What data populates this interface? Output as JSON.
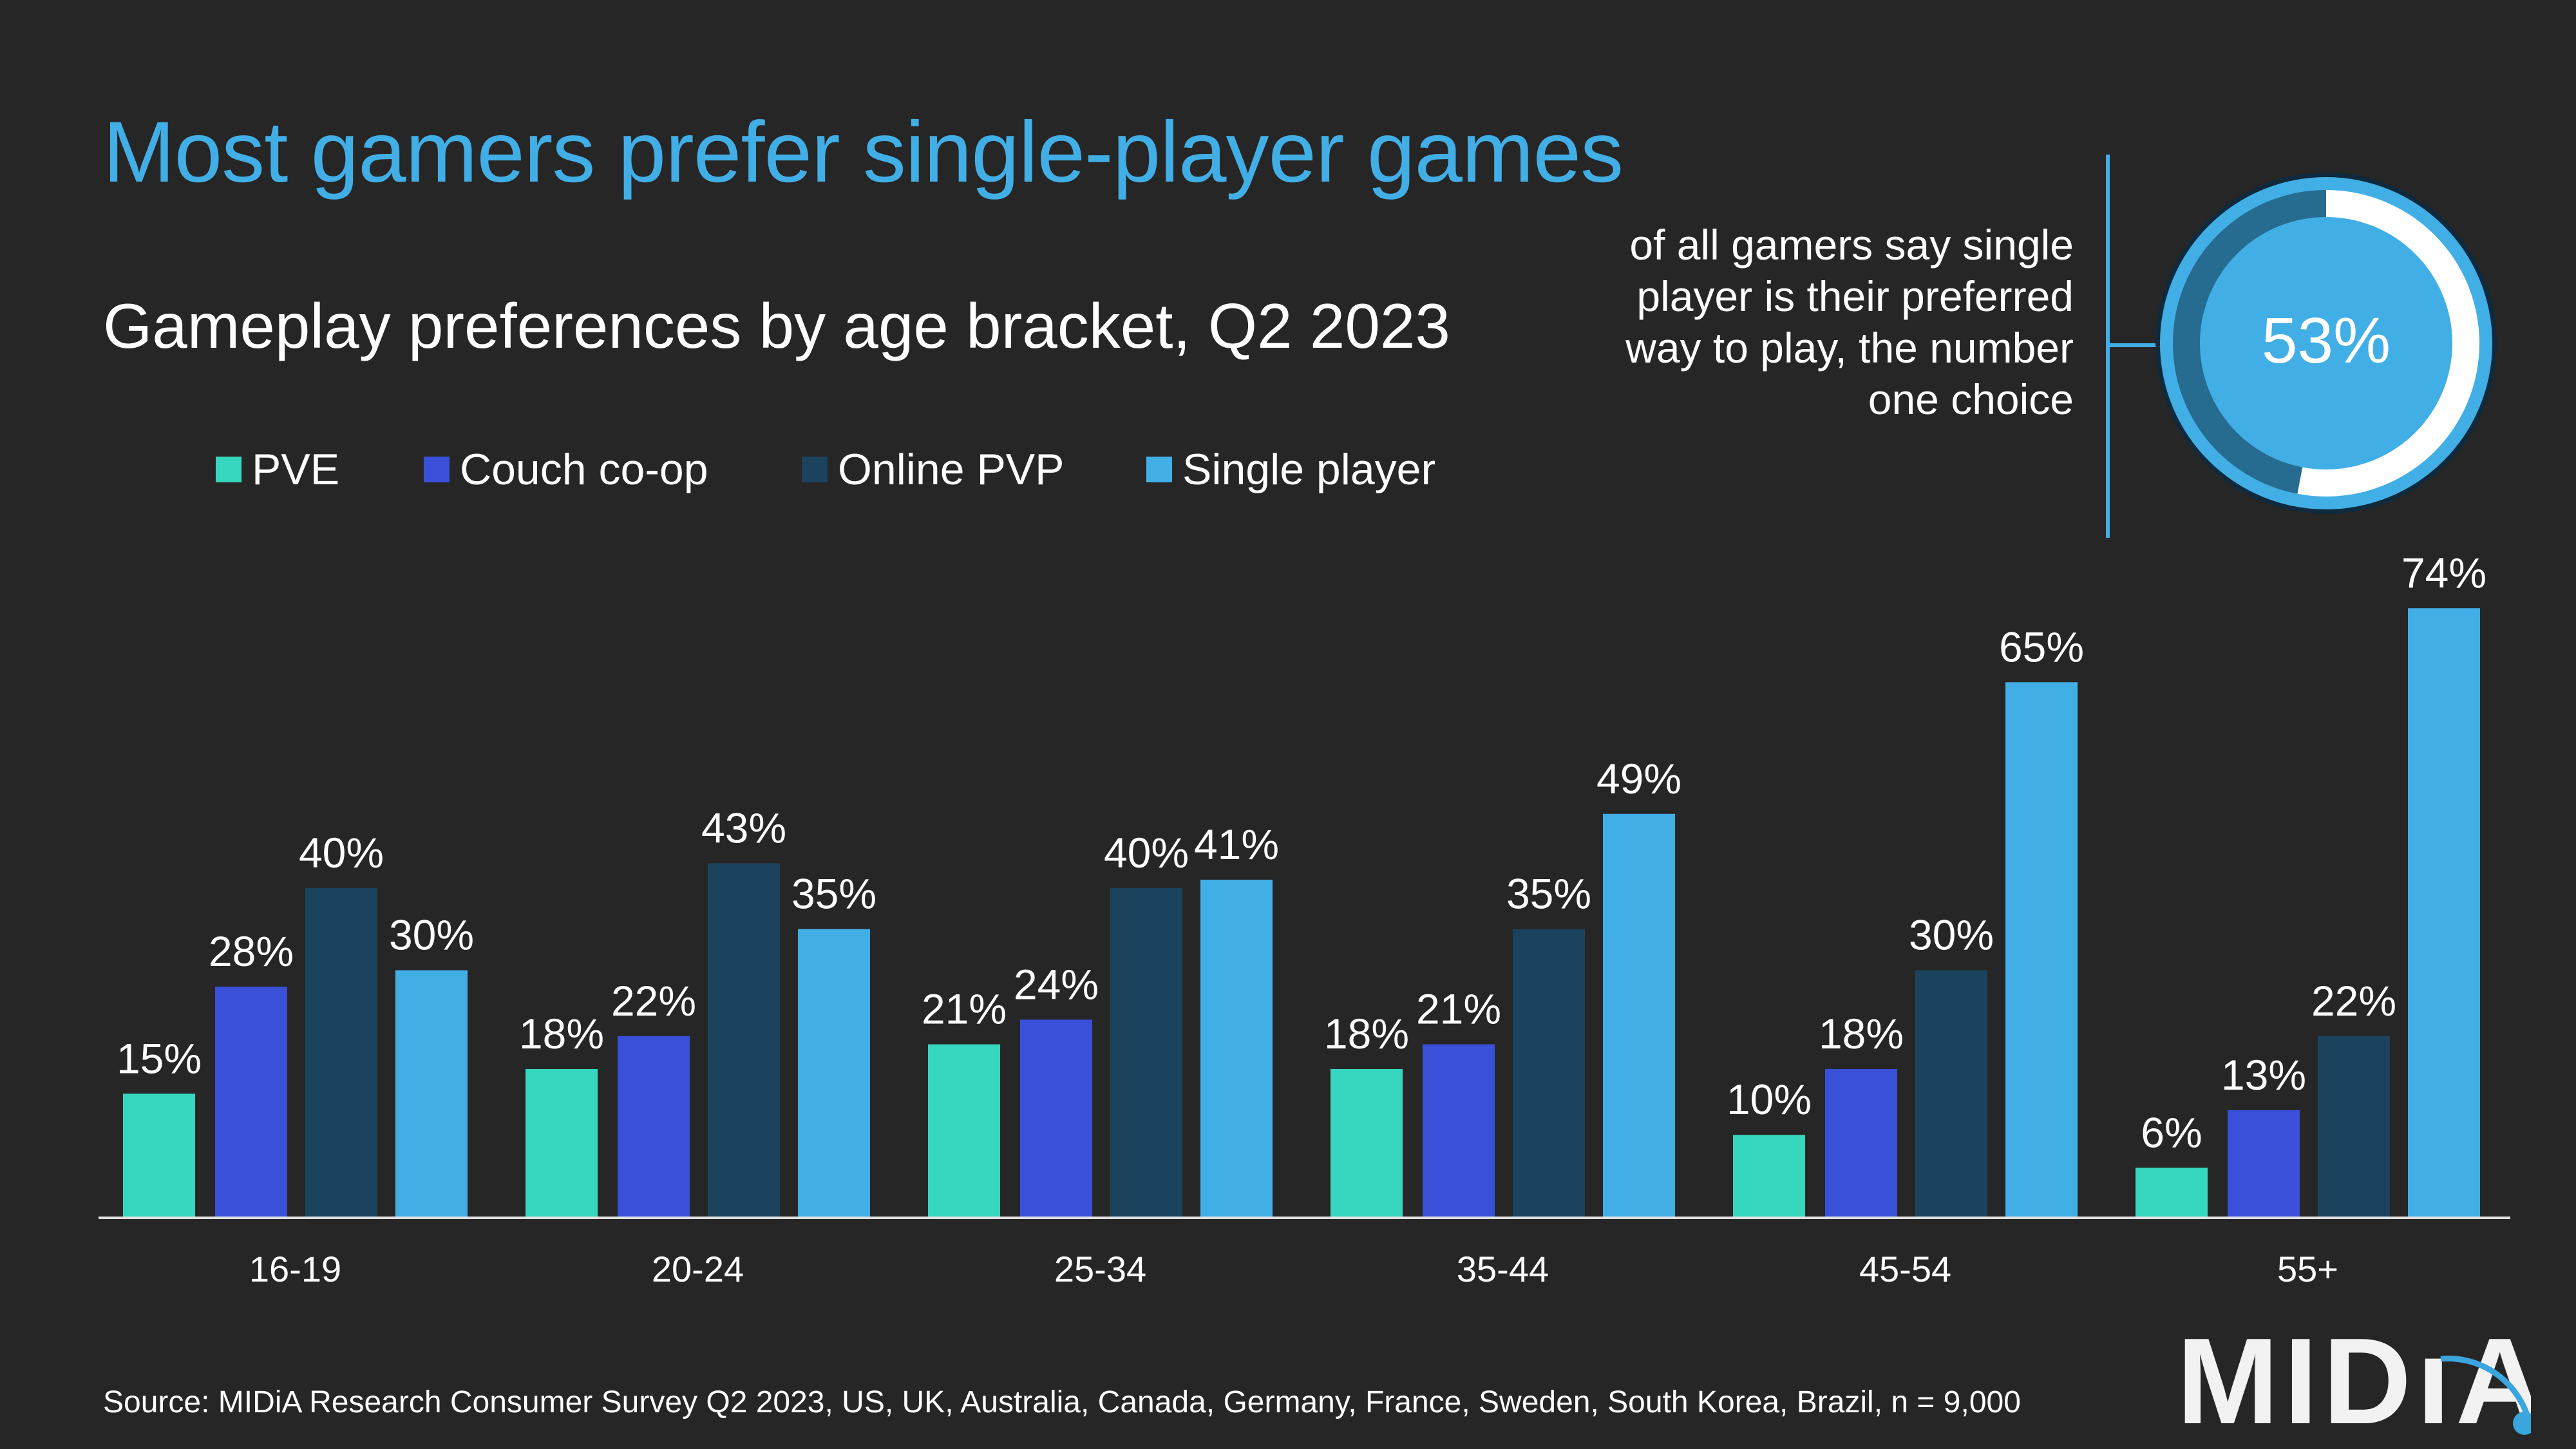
{
  "title": "Most gamers prefer single-player games",
  "callout": {
    "value": "53%",
    "value_fraction": 0.53,
    "text": "of all gamers say single player is their preferred way to play, the number one choice",
    "colors": {
      "fill": "#42aee6",
      "segment": "#ffffff",
      "remainder": "#266b90"
    }
  },
  "source": "Source: MIDiA Research Consumer Survey Q2 2023, US, UK, Australia, Canada, Germany, France, Sweden, South Korea, Brazil, n = 9,000",
  "logo": "MIDiA",
  "chart_data": {
    "type": "bar",
    "title": "Gameplay preferences by age bracket, Q2 2023",
    "categories": [
      "16-19",
      "20-24",
      "25-34",
      "35-44",
      "45-54",
      "55+"
    ],
    "series": [
      {
        "name": "PVE",
        "color": "#36d7be",
        "values": [
          15,
          18,
          21,
          18,
          10,
          6
        ]
      },
      {
        "name": "Couch co-op",
        "color": "#3a50d9",
        "values": [
          28,
          22,
          24,
          21,
          18,
          13
        ]
      },
      {
        "name": "Online PVP",
        "color": "#1b435e",
        "values": [
          40,
          43,
          40,
          35,
          30,
          22
        ]
      },
      {
        "name": "Single player",
        "color": "#42aee6",
        "values": [
          30,
          35,
          41,
          49,
          65,
          74
        ]
      }
    ],
    "value_suffix": "%",
    "ylim": [
      0,
      74
    ],
    "grid": false,
    "legend": "top-left",
    "data_labels": true
  }
}
